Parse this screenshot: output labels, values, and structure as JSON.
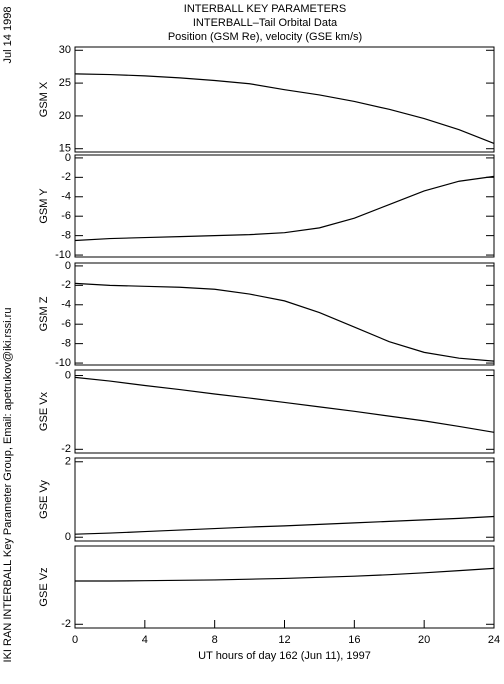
{
  "header": {
    "title": [
      "INTERBALL KEY PARAMETERS",
      "INTERBALL–Tail Orbital Data",
      "Position (GSM Re), velocity (GSE km/s)"
    ],
    "date": "Jul 14 1998",
    "credit": "IKI RAN INTERBALL Key Parameter Group, Email: apetrukov@iki.rssi.ru"
  },
  "chart_data": [
    {
      "type": "line",
      "ylabel": "GSM X",
      "color": "#000000",
      "x": [
        0,
        2,
        4,
        6,
        8,
        10,
        12,
        14,
        16,
        18,
        20,
        22,
        24
      ],
      "xlim": [
        0,
        24
      ],
      "values": [
        26.4,
        26.3,
        26.1,
        25.8,
        25.4,
        24.9,
        24.0,
        23.2,
        22.2,
        21.0,
        19.6,
        17.9,
        15.8
      ],
      "ylim": [
        14.5,
        30.5
      ],
      "yticks": [
        15,
        20,
        25,
        30
      ]
    },
    {
      "type": "line",
      "ylabel": "GSM Y",
      "color": "#000000",
      "x": [
        0,
        2,
        4,
        6,
        8,
        10,
        12,
        14,
        16,
        18,
        20,
        22,
        24
      ],
      "xlim": [
        0,
        24
      ],
      "values": [
        -8.5,
        -8.3,
        -8.2,
        -8.1,
        -8.0,
        -7.9,
        -7.7,
        -7.2,
        -6.2,
        -4.8,
        -3.4,
        -2.4,
        -1.9
      ],
      "ylim": [
        -10.2,
        0.3
      ],
      "yticks": [
        -10,
        -8,
        -6,
        -4,
        -2,
        0
      ]
    },
    {
      "type": "line",
      "ylabel": "GSM Z",
      "color": "#000000",
      "x": [
        0,
        2,
        4,
        6,
        8,
        10,
        12,
        14,
        16,
        18,
        20,
        22,
        24
      ],
      "xlim": [
        0,
        24
      ],
      "values": [
        -1.8,
        -2.0,
        -2.1,
        -2.2,
        -2.4,
        -2.9,
        -3.6,
        -4.8,
        -6.3,
        -7.8,
        -8.9,
        -9.5,
        -9.8
      ],
      "ylim": [
        -10.2,
        0.3
      ],
      "yticks": [
        -10,
        -8,
        -6,
        -4,
        -2,
        0
      ]
    },
    {
      "type": "line",
      "ylabel": "GSE Vx",
      "color": "#000000",
      "x": [
        0,
        2,
        4,
        6,
        8,
        10,
        12,
        14,
        16,
        18,
        20,
        22,
        24
      ],
      "xlim": [
        0,
        24
      ],
      "values": [
        -0.05,
        -0.15,
        -0.27,
        -0.38,
        -0.5,
        -0.61,
        -0.73,
        -0.85,
        -0.97,
        -1.1,
        -1.23,
        -1.38,
        -1.54
      ],
      "ylim": [
        -2.1,
        0.15
      ],
      "yticks": [
        -2,
        0
      ]
    },
    {
      "type": "line",
      "ylabel": "GSE Vy",
      "color": "#000000",
      "x": [
        0,
        2,
        4,
        6,
        8,
        10,
        12,
        14,
        16,
        18,
        20,
        22,
        24
      ],
      "xlim": [
        0,
        24
      ],
      "values": [
        0.08,
        0.11,
        0.15,
        0.19,
        0.23,
        0.27,
        0.3,
        0.34,
        0.38,
        0.42,
        0.46,
        0.5,
        0.55
      ],
      "ylim": [
        -0.1,
        2.1
      ],
      "yticks": [
        0,
        2
      ]
    },
    {
      "type": "line",
      "ylabel": "GSE Vz",
      "color": "#000000",
      "x": [
        0,
        2,
        4,
        6,
        8,
        10,
        12,
        14,
        16,
        18,
        20,
        22,
        24
      ],
      "xlim": [
        0,
        24
      ],
      "values": [
        -0.84,
        -0.84,
        -0.83,
        -0.82,
        -0.81,
        -0.79,
        -0.77,
        -0.74,
        -0.71,
        -0.67,
        -0.62,
        -0.56,
        -0.5
      ],
      "ylim": [
        -2.1,
        0.1
      ],
      "yticks": [
        -2
      ],
      "xticks": [
        0,
        4,
        8,
        12,
        16,
        20,
        24
      ],
      "xlabel": "UT hours of day 162 (Jun 11), 1997"
    }
  ]
}
